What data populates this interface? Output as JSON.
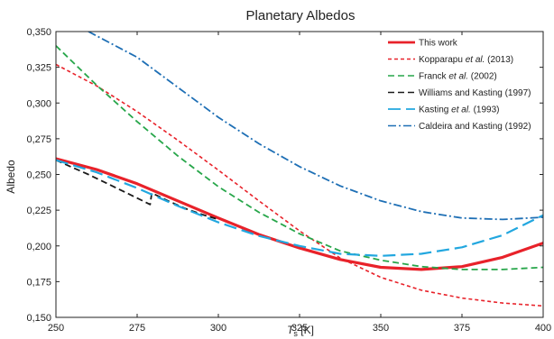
{
  "chart_data": {
    "type": "line",
    "title": "Planetary Albedos",
    "xlabel": "T",
    "xlabel_sub": "s",
    "xlabel_unit": " [K]",
    "ylabel": "Albedo",
    "xlim": [
      250,
      400
    ],
    "ylim": [
      0.15,
      0.35
    ],
    "x_ticks": [
      250,
      275,
      300,
      325,
      350,
      375,
      400
    ],
    "x_tick_labels": [
      "250",
      "275",
      "300",
      "325",
      "350",
      "375",
      "400"
    ],
    "y_ticks": [
      0.15,
      0.175,
      0.2,
      0.225,
      0.25,
      0.275,
      0.3,
      0.325,
      0.35
    ],
    "y_tick_labels": [
      "0,150",
      "0,175",
      "0,200",
      "0,225",
      "0,250",
      "0,275",
      "0,300",
      "0,325",
      "0,350"
    ],
    "grid": false,
    "legend_position": "top-right",
    "series": [
      {
        "name": "This work",
        "color": "#e8222a",
        "dash": "solid",
        "width": 3.2,
        "points": [
          [
            250,
            0.261
          ],
          [
            262.5,
            0.2535
          ],
          [
            275,
            0.2435
          ],
          [
            287.5,
            0.2315
          ],
          [
            300,
            0.2195
          ],
          [
            312.5,
            0.208
          ],
          [
            325,
            0.1985
          ],
          [
            337.5,
            0.1905
          ],
          [
            350,
            0.185
          ],
          [
            362.5,
            0.1835
          ],
          [
            375,
            0.1855
          ],
          [
            387.5,
            0.192
          ],
          [
            400,
            0.202
          ]
        ]
      },
      {
        "name": "Kopparapu et al. (2013)",
        "name_parts": [
          "Kopparapu ",
          "et al.",
          " (2013)"
        ],
        "color": "#e8222a",
        "dash": "dash-short",
        "width": 1.6,
        "points": [
          [
            250,
            0.327
          ],
          [
            262.5,
            0.312
          ],
          [
            275,
            0.294
          ],
          [
            287.5,
            0.274
          ],
          [
            300,
            0.253
          ],
          [
            312.5,
            0.2315
          ],
          [
            325,
            0.2105
          ],
          [
            337.5,
            0.1915
          ],
          [
            350,
            0.178
          ],
          [
            362.5,
            0.169
          ],
          [
            375,
            0.1635
          ],
          [
            387.5,
            0.16
          ],
          [
            400,
            0.158
          ]
        ]
      },
      {
        "name": "Franck et al. (2002)",
        "name_parts": [
          "Franck ",
          "et al.",
          " (2002)"
        ],
        "color": "#27a64a",
        "dash": "dash-medium",
        "width": 1.8,
        "points": [
          [
            250,
            0.34
          ],
          [
            262.5,
            0.3125
          ],
          [
            275,
            0.287
          ],
          [
            287.5,
            0.263
          ],
          [
            300,
            0.2415
          ],
          [
            312.5,
            0.2235
          ],
          [
            325,
            0.2085
          ],
          [
            337.5,
            0.1965
          ],
          [
            350,
            0.19
          ],
          [
            362.5,
            0.1855
          ],
          [
            375,
            0.1835
          ],
          [
            387.5,
            0.1835
          ],
          [
            400,
            0.185
          ]
        ]
      },
      {
        "name": "Williams and Kasting (1997)",
        "color": "#1a1a1a",
        "dash": "dash-medium",
        "width": 1.8,
        "points": [
          [
            250,
            0.26
          ],
          [
            255,
            0.255
          ],
          [
            260,
            0.25
          ],
          [
            265,
            0.2445
          ],
          [
            270,
            0.239
          ],
          [
            275,
            0.2335
          ],
          [
            279,
            0.229
          ],
          [
            279.5,
            0.237
          ],
          [
            285,
            0.231
          ],
          [
            290,
            0.226
          ],
          [
            295,
            0.222
          ],
          [
            300,
            0.2185
          ]
        ]
      },
      {
        "name": "Kasting et al. (1993)",
        "name_parts": [
          "Kasting ",
          "et al.",
          " (1993)"
        ],
        "color": "#22a7df",
        "dash": "dash-long",
        "width": 2.2,
        "points": [
          [
            250,
            0.26
          ],
          [
            262.5,
            0.2515
          ],
          [
            275,
            0.2405
          ],
          [
            287.5,
            0.228
          ],
          [
            300,
            0.2165
          ],
          [
            312.5,
            0.207
          ],
          [
            325,
            0.2
          ],
          [
            337.5,
            0.1945
          ],
          [
            350,
            0.193
          ],
          [
            362.5,
            0.1945
          ],
          [
            375,
            0.199
          ],
          [
            387.5,
            0.2075
          ],
          [
            400,
            0.2215
          ]
        ]
      },
      {
        "name": "Caldeira and Kasting (1992)",
        "color": "#1e6fb5",
        "dash": "dash-dot",
        "width": 1.8,
        "points": [
          [
            260,
            0.35
          ],
          [
            275,
            0.332
          ],
          [
            287.5,
            0.311
          ],
          [
            300,
            0.29
          ],
          [
            312.5,
            0.2715
          ],
          [
            325,
            0.2555
          ],
          [
            337.5,
            0.242
          ],
          [
            350,
            0.2315
          ],
          [
            362.5,
            0.224
          ],
          [
            375,
            0.2195
          ],
          [
            387.5,
            0.2185
          ],
          [
            400,
            0.22
          ]
        ]
      }
    ]
  }
}
